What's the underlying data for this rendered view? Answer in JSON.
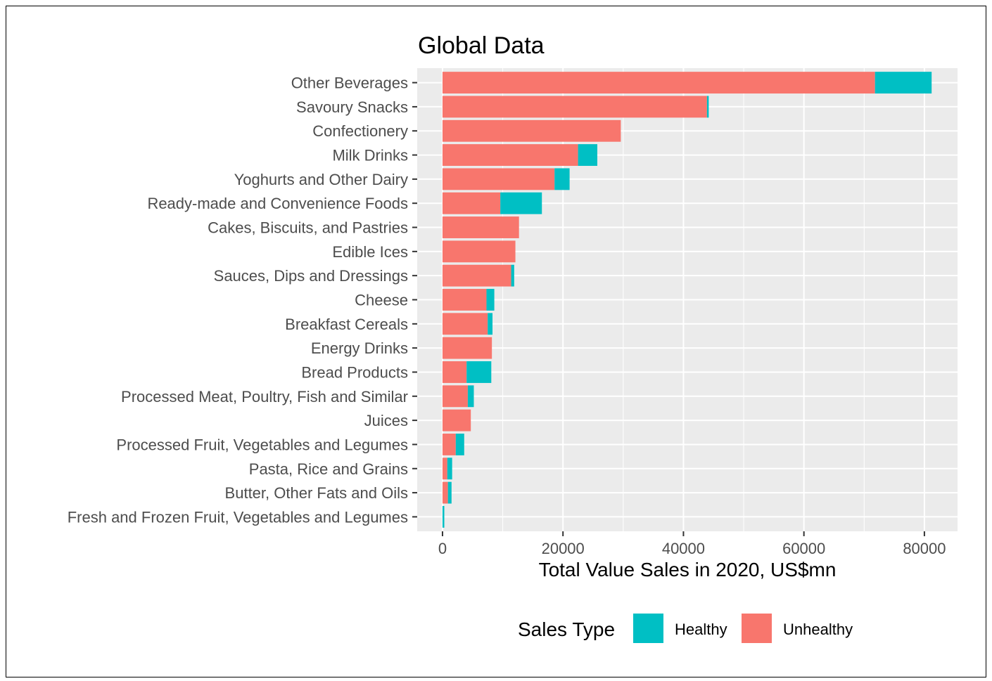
{
  "chart_data": {
    "type": "bar",
    "orientation": "horizontal",
    "stacked": true,
    "title": "Global Data",
    "xlabel": "Total Value Sales in 2020, US$mn",
    "ylabel": "",
    "xlim": [
      -4200,
      85500
    ],
    "xticks": [
      0,
      20000,
      40000,
      60000,
      80000
    ],
    "grid": true,
    "legend": {
      "title": "Sales Type",
      "position": "bottom"
    },
    "categories": [
      "Other Beverages",
      "Savoury Snacks",
      "Confectionery",
      "Milk Drinks",
      "Yoghurts and Other Dairy",
      "Ready-made and Convenience Foods",
      "Cakes, Biscuits, and Pastries",
      "Edible Ices",
      "Sauces, Dips and Dressings",
      "Cheese",
      "Breakfast Cereals",
      "Energy Drinks",
      "Bread Products",
      "Processed Meat, Poultry, Fish and Similar",
      "Juices",
      "Processed Fruit, Vegetables and Legumes",
      "Pasta, Rice and Grains",
      "Butter, Other Fats and Oils",
      "Fresh and Frozen Fruit, Vegetables and Legumes"
    ],
    "series": [
      {
        "name": "Unhealthy",
        "color": "#F8766D",
        "values": [
          71800,
          43900,
          29600,
          22500,
          18600,
          9600,
          12700,
          12100,
          11400,
          7300,
          7500,
          8200,
          4000,
          4200,
          4700,
          2200,
          800,
          900,
          0
        ]
      },
      {
        "name": "Healthy",
        "color": "#00BFC4",
        "values": [
          9400,
          300,
          0,
          3200,
          2500,
          6900,
          0,
          0,
          500,
          1300,
          800,
          0,
          4100,
          1000,
          0,
          1400,
          800,
          600,
          300
        ]
      }
    ]
  }
}
